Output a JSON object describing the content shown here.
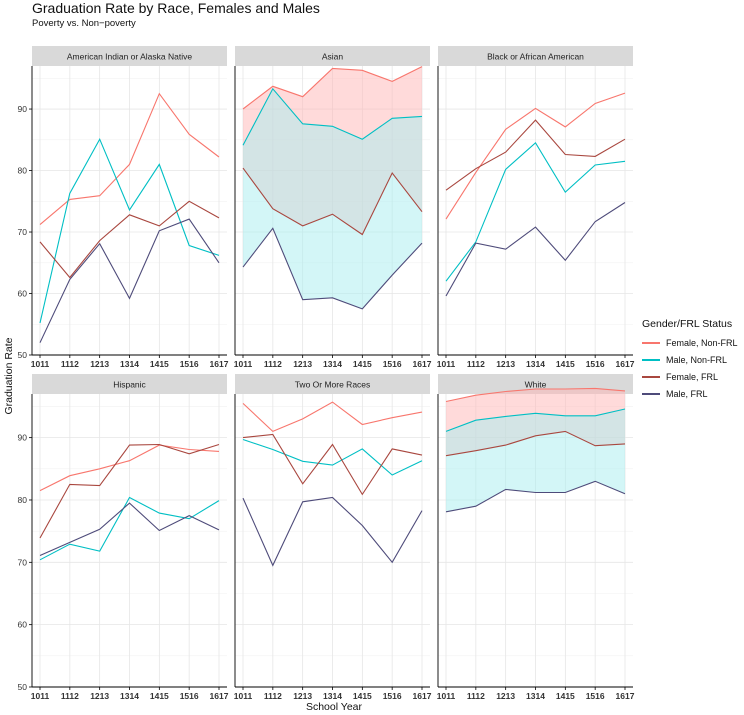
{
  "title": "Graduation Rate by Race, Females and Males",
  "subtitle": "Poverty vs. Non−poverty",
  "chart_data": {
    "type": "line",
    "xlabel": "School Year",
    "ylabel": "Graduation Rate",
    "ylim": [
      50,
      97
    ],
    "yticks": [
      50,
      60,
      70,
      80,
      90
    ],
    "categories": [
      "1011",
      "1112",
      "1213",
      "1314",
      "1415",
      "1516",
      "1617"
    ],
    "grid": true,
    "legend": {
      "title": "Gender/FRL Status",
      "placement": "right",
      "entries": [
        "Female, Non-FRL",
        "Male, Non-FRL",
        "Female, FRL",
        "Male, FRL"
      ]
    },
    "colors": {
      "Female, Non-FRL": "#F8766D",
      "Male, Non-FRL": "#00BFC4",
      "Female, FRL": "#A9473F",
      "Male, FRL": "#4E4B7A",
      "fill_female": "#FFB6B6",
      "fill_male": "#A8EEF0"
    },
    "panels": [
      {
        "name": "American Indian or Alaska Native",
        "shaded": false,
        "series": [
          {
            "name": "Female, Non-FRL",
            "values": [
              71.2,
              75.3,
              75.9,
              81.0,
              92.5,
              85.9,
              82.2
            ]
          },
          {
            "name": "Male, Non-FRL",
            "values": [
              55.2,
              76.3,
              85.1,
              73.6,
              81.0,
              67.8,
              66.2
            ]
          },
          {
            "name": "Female, FRL",
            "values": [
              68.4,
              62.6,
              68.6,
              72.8,
              71.0,
              75.0,
              72.3
            ]
          },
          {
            "name": "Male, FRL",
            "values": [
              52.0,
              62.3,
              68.1,
              59.2,
              70.2,
              72.1,
              65.0
            ]
          }
        ]
      },
      {
        "name": "Asian",
        "shaded": true,
        "series": [
          {
            "name": "Female, Non-FRL",
            "values": [
              90.0,
              93.7,
              92.0,
              96.6,
              96.3,
              94.5,
              96.9
            ]
          },
          {
            "name": "Male, Non-FRL",
            "values": [
              84.1,
              93.3,
              87.6,
              87.2,
              85.1,
              88.5,
              88.8
            ]
          },
          {
            "name": "Female, FRL",
            "values": [
              80.4,
              73.8,
              71.0,
              72.9,
              69.6,
              79.6,
              73.3
            ]
          },
          {
            "name": "Male, FRL",
            "values": [
              64.3,
              70.6,
              59.0,
              59.3,
              57.5,
              63.0,
              68.2
            ]
          }
        ]
      },
      {
        "name": "Black or African American",
        "shaded": false,
        "series": [
          {
            "name": "Female, Non-FRL",
            "values": [
              72.1,
              79.7,
              86.7,
              90.1,
              87.1,
              90.9,
              92.6
            ]
          },
          {
            "name": "Male, Non-FRL",
            "values": [
              62.0,
              68.4,
              80.2,
              84.5,
              76.5,
              80.9,
              81.5
            ]
          },
          {
            "name": "Female, FRL",
            "values": [
              76.8,
              80.3,
              83.0,
              88.2,
              82.6,
              82.3,
              85.1
            ]
          },
          {
            "name": "Male, FRL",
            "values": [
              59.6,
              68.2,
              67.2,
              70.8,
              65.4,
              71.7,
              74.8
            ]
          }
        ]
      },
      {
        "name": "Hispanic",
        "shaded": false,
        "series": [
          {
            "name": "Female, Non-FRL",
            "values": [
              81.5,
              83.9,
              85.0,
              86.3,
              88.8,
              88.1,
              87.8
            ]
          },
          {
            "name": "Male, Non-FRL",
            "values": [
              70.4,
              72.9,
              71.8,
              80.4,
              77.9,
              77.0,
              79.9
            ]
          },
          {
            "name": "Female, FRL",
            "values": [
              73.9,
              82.5,
              82.3,
              88.8,
              88.9,
              87.4,
              88.9
            ]
          },
          {
            "name": "Male, FRL",
            "values": [
              71.1,
              73.2,
              75.3,
              79.5,
              75.1,
              77.5,
              75.2
            ]
          }
        ]
      },
      {
        "name": "Two Or More Races",
        "shaded": false,
        "series": [
          {
            "name": "Female, Non-FRL",
            "values": [
              95.5,
              91.0,
              93.0,
              95.7,
              92.1,
              93.2,
              94.1
            ]
          },
          {
            "name": "Male, Non-FRL",
            "values": [
              89.7,
              88.1,
              86.2,
              85.6,
              88.2,
              84.0,
              86.3
            ]
          },
          {
            "name": "Female, FRL",
            "values": [
              90.0,
              90.5,
              82.6,
              88.9,
              80.9,
              88.2,
              87.2
            ]
          },
          {
            "name": "Male, FRL",
            "values": [
              80.3,
              69.5,
              79.7,
              80.4,
              75.9,
              70.0,
              78.3
            ]
          }
        ]
      },
      {
        "name": "White",
        "shaded": true,
        "series": [
          {
            "name": "Female, Non-FRL",
            "values": [
              95.8,
              96.8,
              97.4,
              97.8,
              97.8,
              97.9,
              97.5
            ]
          },
          {
            "name": "Male, Non-FRL",
            "values": [
              91.0,
              92.8,
              93.4,
              93.9,
              93.5,
              93.5,
              94.6
            ]
          },
          {
            "name": "Female, FRL",
            "values": [
              87.1,
              87.9,
              88.8,
              90.3,
              91.0,
              88.7,
              89.0
            ]
          },
          {
            "name": "Male, FRL",
            "values": [
              78.1,
              79.0,
              81.7,
              81.2,
              81.2,
              83.0,
              81.0
            ]
          }
        ]
      }
    ]
  }
}
